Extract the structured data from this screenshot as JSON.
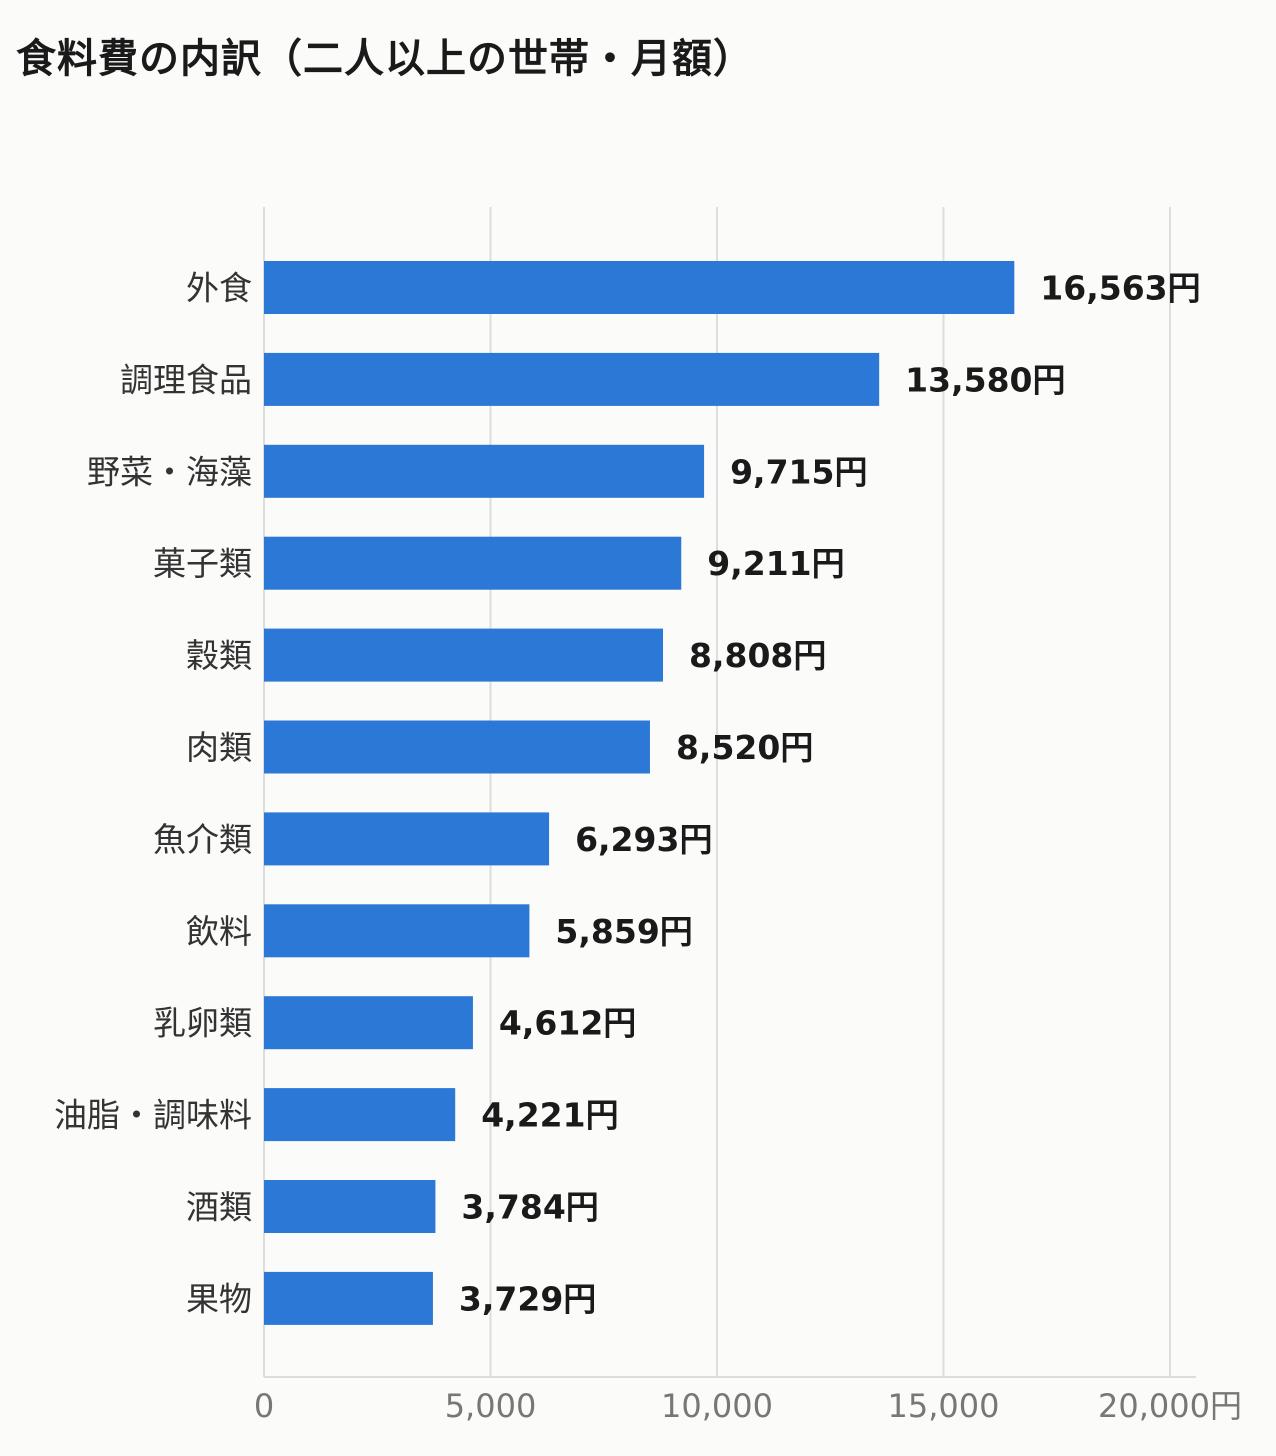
{
  "chart_data": {
    "type": "bar",
    "orientation": "horizontal",
    "title": "食料費の内訳（二人以上の世帯・月額）",
    "categories": [
      "外食",
      "調理食品",
      "野菜・海藻",
      "菓子類",
      "穀類",
      "肉類",
      "魚介類",
      "飲料",
      "乳卵類",
      "油脂・調味料",
      "酒類",
      "果物"
    ],
    "values": [
      16563,
      13580,
      9715,
      9211,
      8808,
      8520,
      6293,
      5859,
      4612,
      4221,
      3784,
      3729
    ],
    "value_labels": [
      "16,563円",
      "13,580円",
      "9,715円",
      "9,211円",
      "8,808円",
      "8,520円",
      "6,293円",
      "5,859円",
      "4,612円",
      "4,221円",
      "3,784円",
      "3,729円"
    ],
    "xlim": [
      0,
      20000
    ],
    "x_ticks": [
      0,
      5000,
      10000,
      15000,
      20000
    ],
    "x_tick_labels": [
      "0",
      "5,000",
      "10,000",
      "15,000",
      "20,000円"
    ],
    "grid": "vertical",
    "bar_color": "#2b78d6"
  }
}
